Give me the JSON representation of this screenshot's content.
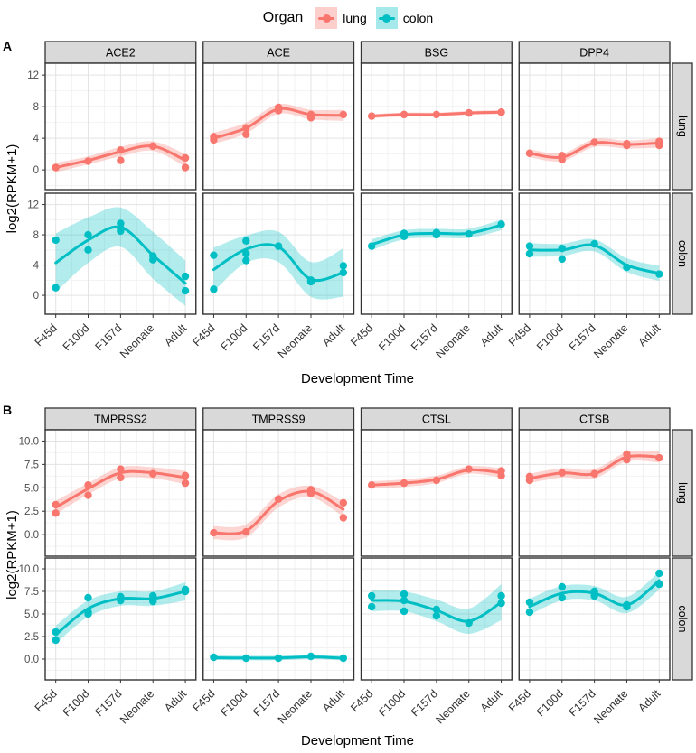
{
  "legend": {
    "title": "Organ",
    "items": [
      {
        "label": "lung",
        "line": "#F8766D",
        "key_fill": "rgba(248,118,109,0.35)"
      },
      {
        "label": "colon",
        "line": "#00BFC4",
        "key_fill": "rgba(0,191,196,0.35)"
      }
    ]
  },
  "organs": {
    "lung": {
      "stroke": "#F8766D",
      "ribbon": "rgba(248,118,109,0.30)"
    },
    "colon": {
      "stroke": "#00BFC4",
      "ribbon": "rgba(0,191,196,0.30)"
    }
  },
  "style": {
    "strip_fill": "#D9D9D9",
    "strip_border": "#333333",
    "panel_border": "#333333",
    "grid_major": "#E3E3E3",
    "grid_minor": "#F2F2F2",
    "tick_color": "#333333",
    "tick_label_color": "#4D4D4D",
    "axis_title_color": "#000000"
  },
  "chart_data": [
    {
      "panel_label": "A",
      "type": "line",
      "x_categories": [
        "F45d",
        "F100d",
        "F157d",
        "Neonate",
        "Adult"
      ],
      "col_facets": [
        "ACE2",
        "ACE",
        "BSG",
        "DPP4"
      ],
      "row_facets": [
        "lung",
        "colon"
      ],
      "ylabel": "log2(RPKM+1)",
      "xlabel": "Development Time",
      "yticks": [
        0,
        4,
        8,
        12
      ],
      "ytick_labels": [
        "0",
        "4",
        "8",
        "12"
      ],
      "ylim": [
        -2.5,
        13.5
      ],
      "facets": [
        {
          "gene": "ACE2",
          "organ": "lung",
          "points": [
            [
              0,
              0.3
            ],
            [
              1,
              1.1
            ],
            [
              2,
              2.5
            ],
            [
              2,
              1.2
            ],
            [
              3,
              3.0
            ],
            [
              4,
              1.5
            ],
            [
              4,
              0.3
            ]
          ],
          "smooth": [
            0.3,
            1.2,
            2.3,
            3.0,
            1.2
          ],
          "upper": [
            0.9,
            1.7,
            2.9,
            3.6,
            2.0
          ],
          "lower": [
            -0.3,
            0.7,
            1.7,
            2.4,
            0.4
          ]
        },
        {
          "gene": "ACE",
          "organ": "lung",
          "points": [
            [
              0,
              4.2
            ],
            [
              0,
              3.8
            ],
            [
              1,
              5.3
            ],
            [
              1,
              4.5
            ],
            [
              2,
              7.9
            ],
            [
              2,
              7.5
            ],
            [
              3,
              7.0
            ],
            [
              3,
              6.6
            ],
            [
              4,
              7.0
            ]
          ],
          "smooth": [
            4.0,
            5.3,
            7.7,
            7.0,
            6.9
          ],
          "upper": [
            4.7,
            6.0,
            8.3,
            7.6,
            7.6
          ],
          "lower": [
            3.3,
            4.6,
            7.1,
            6.4,
            6.2
          ]
        },
        {
          "gene": "BSG",
          "organ": "lung",
          "points": [
            [
              0,
              6.8
            ],
            [
              1,
              7.0
            ],
            [
              2,
              7.0
            ],
            [
              3,
              7.2
            ],
            [
              4,
              7.3
            ]
          ],
          "smooth": [
            6.8,
            7.0,
            7.0,
            7.2,
            7.3
          ],
          "upper": [
            7.05,
            7.25,
            7.25,
            7.45,
            7.55
          ],
          "lower": [
            6.55,
            6.75,
            6.75,
            6.95,
            7.05
          ]
        },
        {
          "gene": "DPP4",
          "organ": "lung",
          "points": [
            [
              0,
              2.1
            ],
            [
              1,
              1.8
            ],
            [
              1,
              1.3
            ],
            [
              2,
              3.5
            ],
            [
              3,
              3.3
            ],
            [
              3,
              3.1
            ],
            [
              4,
              3.6
            ],
            [
              4,
              3.1
            ]
          ],
          "smooth": [
            2.1,
            1.6,
            3.4,
            3.2,
            3.4
          ],
          "upper": [
            2.6,
            2.1,
            3.9,
            3.7,
            4.0
          ],
          "lower": [
            1.6,
            1.1,
            2.9,
            2.7,
            2.8
          ]
        },
        {
          "gene": "ACE2",
          "organ": "colon",
          "points": [
            [
              0,
              7.3
            ],
            [
              0,
              1.0
            ],
            [
              1,
              8.0
            ],
            [
              1,
              6.0
            ],
            [
              2,
              9.5
            ],
            [
              2,
              8.9
            ],
            [
              2,
              8.5
            ],
            [
              3,
              5.2
            ],
            [
              3,
              4.7
            ],
            [
              4,
              2.5
            ],
            [
              4,
              0.6
            ]
          ],
          "smooth": [
            4.3,
            7.3,
            9.0,
            5.3,
            1.6
          ],
          "upper": [
            8.2,
            10.3,
            11.6,
            8.4,
            4.6
          ],
          "lower": [
            0.4,
            4.3,
            6.4,
            2.2,
            -1.4
          ]
        },
        {
          "gene": "ACE",
          "organ": "colon",
          "points": [
            [
              0,
              5.3
            ],
            [
              0,
              0.8
            ],
            [
              1,
              7.2
            ],
            [
              1,
              5.5
            ],
            [
              1,
              4.6
            ],
            [
              2,
              6.5
            ],
            [
              3,
              2.0
            ],
            [
              3,
              1.8
            ],
            [
              4,
              3.9
            ],
            [
              4,
              3.0
            ]
          ],
          "smooth": [
            3.4,
            6.1,
            6.4,
            2.1,
            3.0
          ],
          "upper": [
            6.3,
            7.9,
            8.4,
            4.4,
            6.2
          ],
          "lower": [
            0.5,
            4.3,
            4.4,
            -0.2,
            -0.2
          ]
        },
        {
          "gene": "BSG",
          "organ": "colon",
          "points": [
            [
              0,
              6.5
            ],
            [
              1,
              8.2
            ],
            [
              1,
              7.8
            ],
            [
              2,
              8.3
            ],
            [
              2,
              8.0
            ],
            [
              3,
              8.1
            ],
            [
              4,
              9.4
            ]
          ],
          "smooth": [
            6.7,
            8.0,
            8.2,
            8.2,
            9.3
          ],
          "upper": [
            7.4,
            8.6,
            8.8,
            8.8,
            10.0
          ],
          "lower": [
            6.0,
            7.4,
            7.6,
            7.6,
            8.6
          ]
        },
        {
          "gene": "DPP4",
          "organ": "colon",
          "points": [
            [
              0,
              6.5
            ],
            [
              0,
              5.5
            ],
            [
              1,
              6.2
            ],
            [
              1,
              4.8
            ],
            [
              2,
              6.8
            ],
            [
              3,
              3.7
            ],
            [
              4,
              2.8
            ]
          ],
          "smooth": [
            6.0,
            6.0,
            6.6,
            4.0,
            2.9
          ],
          "upper": [
            6.9,
            6.8,
            7.4,
            4.9,
            3.9
          ],
          "lower": [
            5.1,
            5.2,
            5.8,
            3.1,
            1.9
          ]
        }
      ]
    },
    {
      "panel_label": "B",
      "type": "line",
      "x_categories": [
        "F45d",
        "F100d",
        "F157d",
        "Neonate",
        "Adult"
      ],
      "col_facets": [
        "TMPRSS2",
        "TMPRSS9",
        "CTSL",
        "CTSB"
      ],
      "row_facets": [
        "lung",
        "colon"
      ],
      "ylabel": "log2(RPKM+1)",
      "xlabel": "Development Time",
      "yticks": [
        0,
        2.5,
        5,
        7.5,
        10
      ],
      "ytick_labels": [
        "0.0",
        "2.5",
        "5.0",
        "7.5",
        "10.0"
      ],
      "ylim": [
        -2.3,
        11.2
      ],
      "facets": [
        {
          "gene": "TMPRSS2",
          "organ": "lung",
          "points": [
            [
              0,
              3.2
            ],
            [
              0,
              2.3
            ],
            [
              1,
              5.3
            ],
            [
              1,
              4.2
            ],
            [
              2,
              7.0
            ],
            [
              2,
              6.1
            ],
            [
              3,
              6.5
            ],
            [
              4,
              6.3
            ],
            [
              4,
              5.5
            ]
          ],
          "smooth": [
            2.9,
            4.9,
            6.6,
            6.6,
            6.1
          ],
          "upper": [
            3.6,
            5.5,
            7.2,
            7.2,
            6.8
          ],
          "lower": [
            2.2,
            4.3,
            6.0,
            6.0,
            5.4
          ]
        },
        {
          "gene": "TMPRSS9",
          "organ": "lung",
          "points": [
            [
              0,
              0.2
            ],
            [
              1,
              0.3
            ],
            [
              2,
              3.8
            ],
            [
              3,
              4.8
            ],
            [
              3,
              4.4
            ],
            [
              4,
              3.4
            ],
            [
              4,
              1.8
            ]
          ],
          "smooth": [
            0.2,
            0.4,
            3.6,
            4.6,
            2.7
          ],
          "upper": [
            0.9,
            1.1,
            4.3,
            5.2,
            3.5
          ],
          "lower": [
            -0.5,
            -0.3,
            2.9,
            4.0,
            1.9
          ]
        },
        {
          "gene": "CTSL",
          "organ": "lung",
          "points": [
            [
              0,
              5.3
            ],
            [
              1,
              5.5
            ],
            [
              2,
              5.8
            ],
            [
              3,
              7.0
            ],
            [
              4,
              6.8
            ],
            [
              4,
              6.3
            ]
          ],
          "smooth": [
            5.3,
            5.5,
            5.9,
            6.9,
            6.6
          ],
          "upper": [
            5.7,
            5.9,
            6.3,
            7.3,
            7.1
          ],
          "lower": [
            4.9,
            5.1,
            5.5,
            6.5,
            6.1
          ]
        },
        {
          "gene": "CTSB",
          "organ": "lung",
          "points": [
            [
              0,
              6.2
            ],
            [
              0,
              5.8
            ],
            [
              1,
              6.6
            ],
            [
              2,
              6.5
            ],
            [
              3,
              8.6
            ],
            [
              3,
              8.0
            ],
            [
              4,
              8.2
            ]
          ],
          "smooth": [
            6.0,
            6.6,
            6.5,
            8.3,
            8.3
          ],
          "upper": [
            6.5,
            7.1,
            7.0,
            8.8,
            8.9
          ],
          "lower": [
            5.5,
            6.1,
            6.0,
            7.8,
            7.7
          ]
        },
        {
          "gene": "TMPRSS2",
          "organ": "colon",
          "points": [
            [
              0,
              3.0
            ],
            [
              0,
              2.1
            ],
            [
              1,
              6.8
            ],
            [
              1,
              5.2
            ],
            [
              1,
              5.0
            ],
            [
              2,
              6.9
            ],
            [
              2,
              6.5
            ],
            [
              3,
              7.0
            ],
            [
              3,
              6.4
            ],
            [
              4,
              7.7
            ],
            [
              4,
              7.5
            ]
          ],
          "smooth": [
            2.7,
            5.6,
            6.7,
            6.7,
            7.5
          ],
          "upper": [
            3.7,
            6.5,
            7.5,
            7.5,
            8.5
          ],
          "lower": [
            1.7,
            4.7,
            5.9,
            5.9,
            6.5
          ]
        },
        {
          "gene": "TMPRSS9",
          "organ": "colon",
          "points": [
            [
              0,
              0.2
            ],
            [
              1,
              0.1
            ],
            [
              2,
              0.1
            ],
            [
              3,
              0.3
            ],
            [
              4,
              0.1
            ]
          ],
          "smooth": [
            0.15,
            0.12,
            0.12,
            0.25,
            0.1
          ],
          "upper": [
            0.4,
            0.37,
            0.37,
            0.5,
            0.35
          ],
          "lower": [
            -0.1,
            -0.13,
            -0.13,
            0.0,
            -0.15
          ]
        },
        {
          "gene": "CTSL",
          "organ": "colon",
          "points": [
            [
              0,
              7.0
            ],
            [
              0,
              5.8
            ],
            [
              1,
              7.2
            ],
            [
              1,
              6.5
            ],
            [
              1,
              5.3
            ],
            [
              2,
              5.5
            ],
            [
              2,
              4.8
            ],
            [
              3,
              4.0
            ],
            [
              4,
              7.0
            ],
            [
              4,
              6.2
            ]
          ],
          "smooth": [
            6.5,
            6.4,
            5.4,
            4.2,
            6.3
          ],
          "upper": [
            7.7,
            7.5,
            6.6,
            5.6,
            8.3
          ],
          "lower": [
            5.3,
            5.3,
            4.2,
            2.8,
            4.3
          ]
        },
        {
          "gene": "CTSB",
          "organ": "colon",
          "points": [
            [
              0,
              6.3
            ],
            [
              0,
              5.2
            ],
            [
              1,
              8.0
            ],
            [
              1,
              6.8
            ],
            [
              2,
              7.5
            ],
            [
              2,
              7.0
            ],
            [
              3,
              6.0
            ],
            [
              3,
              5.8
            ],
            [
              4,
              9.5
            ],
            [
              4,
              8.3
            ]
          ],
          "smooth": [
            5.8,
            7.3,
            7.3,
            6.0,
            8.7
          ],
          "upper": [
            6.7,
            8.1,
            8.1,
            6.9,
            9.7
          ],
          "lower": [
            4.9,
            6.5,
            6.5,
            5.1,
            7.7
          ]
        }
      ]
    }
  ]
}
